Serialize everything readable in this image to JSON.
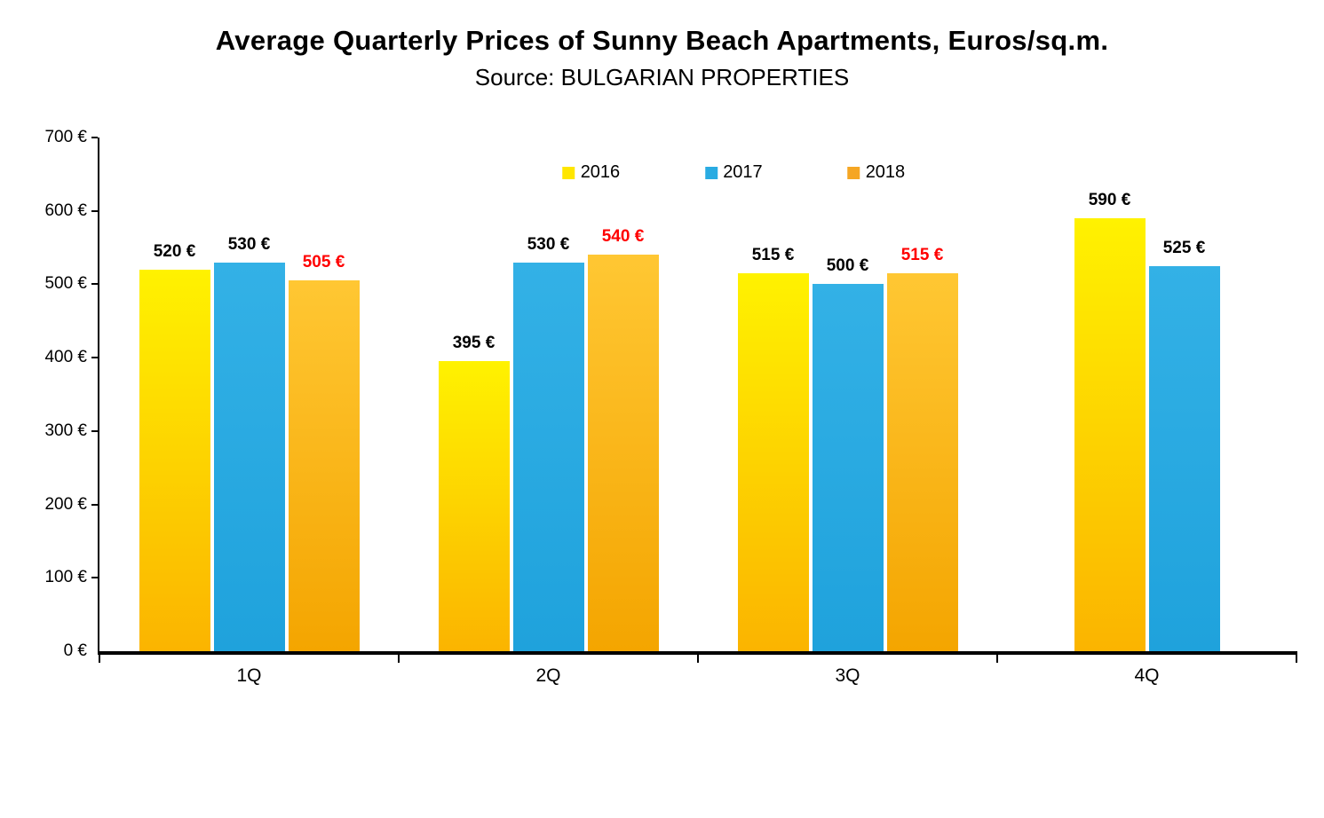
{
  "title": "Average Quarterly Prices of Sunny Beach Apartments, Euros/sq.m.",
  "subtitle": "Source: BULGARIAN PROPERTIES",
  "chart_data": {
    "type": "bar",
    "title": "Average Quarterly Prices of Sunny Beach Apartments, Euros/sq.m.",
    "subtitle": "Source: BULGARIAN PROPERTIES",
    "categories": [
      "1Q",
      "2Q",
      "3Q",
      "4Q"
    ],
    "series": [
      {
        "name": "2016",
        "values": [
          520,
          395,
          515,
          590
        ],
        "color_top": "#FFF200",
        "color_bottom": "#FBB400",
        "legend_color": "#FFE600",
        "label_color": "#000000"
      },
      {
        "name": "2017",
        "values": [
          530,
          530,
          500,
          525
        ],
        "color_top": "#33B1E6",
        "color_bottom": "#1FA2DC",
        "legend_color": "#29ABE2",
        "label_color": "#000000"
      },
      {
        "name": "2018",
        "values": [
          505,
          540,
          515,
          null
        ],
        "color_top": "#FFC733",
        "color_bottom": "#F4A500",
        "legend_color": "#F5A623",
        "label_color": "#FF0000"
      }
    ],
    "value_suffix": " €",
    "ylabel": "",
    "xlabel": "",
    "ylim": [
      0,
      700
    ],
    "ytick_step": 100,
    "yticks": [
      "700 €",
      "600 €",
      "500 €",
      "400 €",
      "300 €",
      "200 €",
      "100 €",
      "0 €"
    ],
    "legend_position": "top-center-inside",
    "grid": false
  }
}
